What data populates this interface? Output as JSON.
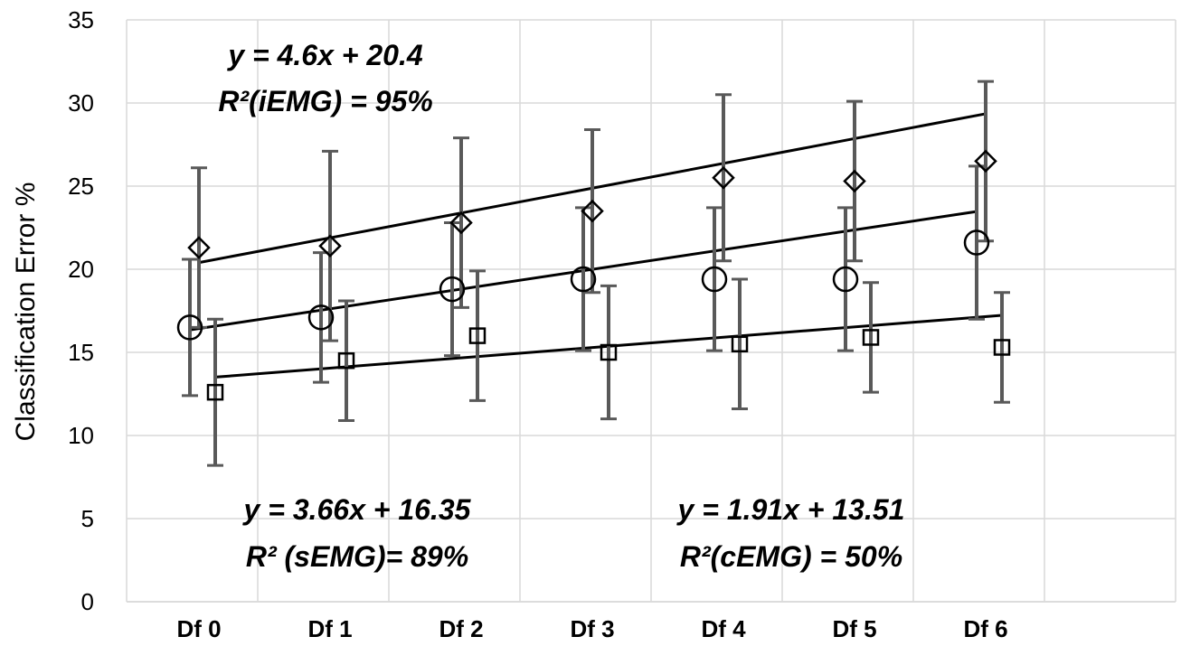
{
  "chart_data": {
    "type": "scatter",
    "ylabel": "Classification Error %",
    "xlabel": "",
    "ylim": [
      0,
      35
    ],
    "yticks": [
      0,
      5,
      10,
      15,
      20,
      25,
      30,
      35
    ],
    "categories": [
      "Df 0",
      "Df 1",
      "Df 2",
      "Df 3",
      "Df 4",
      "Df 5",
      "Df 6"
    ],
    "grid": true,
    "series": [
      {
        "marker": "diamond",
        "values": [
          21.3,
          21.4,
          22.8,
          23.5,
          25.5,
          25.3,
          26.5
        ],
        "error": [
          4.8,
          5.7,
          5.1,
          4.9,
          5.0,
          4.8,
          4.8
        ],
        "trend": {
          "slope": 4.6,
          "intercept": 20.4
        }
      },
      {
        "marker": "circle",
        "values": [
          16.5,
          17.1,
          18.8,
          19.4,
          19.4,
          19.4,
          21.6
        ],
        "error": [
          4.1,
          3.9,
          4.0,
          4.3,
          4.3,
          4.3,
          4.6
        ],
        "trend": {
          "slope": 3.66,
          "intercept": 16.35
        }
      },
      {
        "marker": "square",
        "values": [
          12.6,
          14.5,
          16.0,
          15.0,
          15.5,
          15.9,
          15.3
        ],
        "error": [
          4.4,
          3.6,
          3.9,
          4.0,
          3.9,
          3.3,
          3.3
        ],
        "trend": {
          "slope": 1.91,
          "intercept": 13.51
        }
      }
    ],
    "annotations": [
      {
        "line1": "y = 4.6x + 20.4",
        "line2": "R²(iEMG) = 95%"
      },
      {
        "line1": "y = 3.66x + 16.35",
        "line2": "R² (sEMG)= 89%"
      },
      {
        "line1": "y = 1.91x + 13.51",
        "line2": "R²(cEMG) = 50%"
      }
    ]
  }
}
